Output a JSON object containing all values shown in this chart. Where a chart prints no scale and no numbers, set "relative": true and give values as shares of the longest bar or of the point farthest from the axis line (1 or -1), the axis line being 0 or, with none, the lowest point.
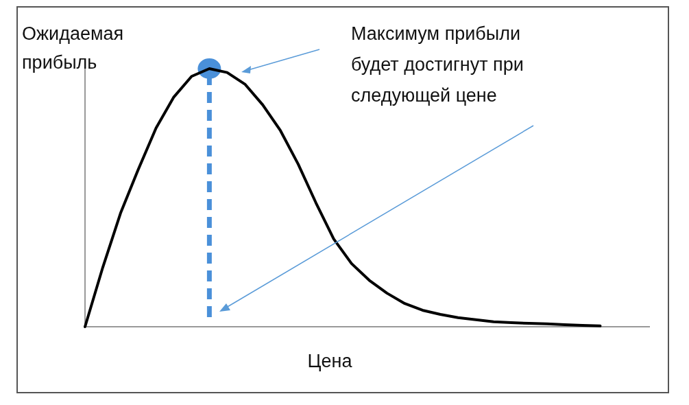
{
  "chart_data": {
    "type": "line",
    "relative": true,
    "xlabel": "Цена",
    "ylabel": "Ожидаемая прибыль",
    "annotations": [
      "Максимум прибыли будет достигнут при следующей цене"
    ],
    "categories": [
      null,
      null,
      null,
      null,
      null,
      null,
      null,
      null,
      null,
      null,
      null,
      null,
      null,
      null,
      null,
      null,
      null,
      null,
      null,
      null,
      null,
      null,
      null,
      null,
      null,
      null,
      null,
      null,
      null,
      null
    ],
    "series": [
      {
        "color": "#000000",
        "values": [
          0,
          0.23,
          0.44,
          0.61,
          0.77,
          0.89,
          0.97,
          1,
          0.985,
          0.94,
          0.86,
          0.76,
          0.63,
          0.48,
          0.34,
          0.245,
          0.18,
          0.13,
          0.09,
          0.064,
          0.048,
          0.035,
          0.027,
          0.019,
          0.016,
          0.013,
          0.011,
          0.008,
          0.005,
          0.003
        ]
      }
    ],
    "grid": false
  }
}
